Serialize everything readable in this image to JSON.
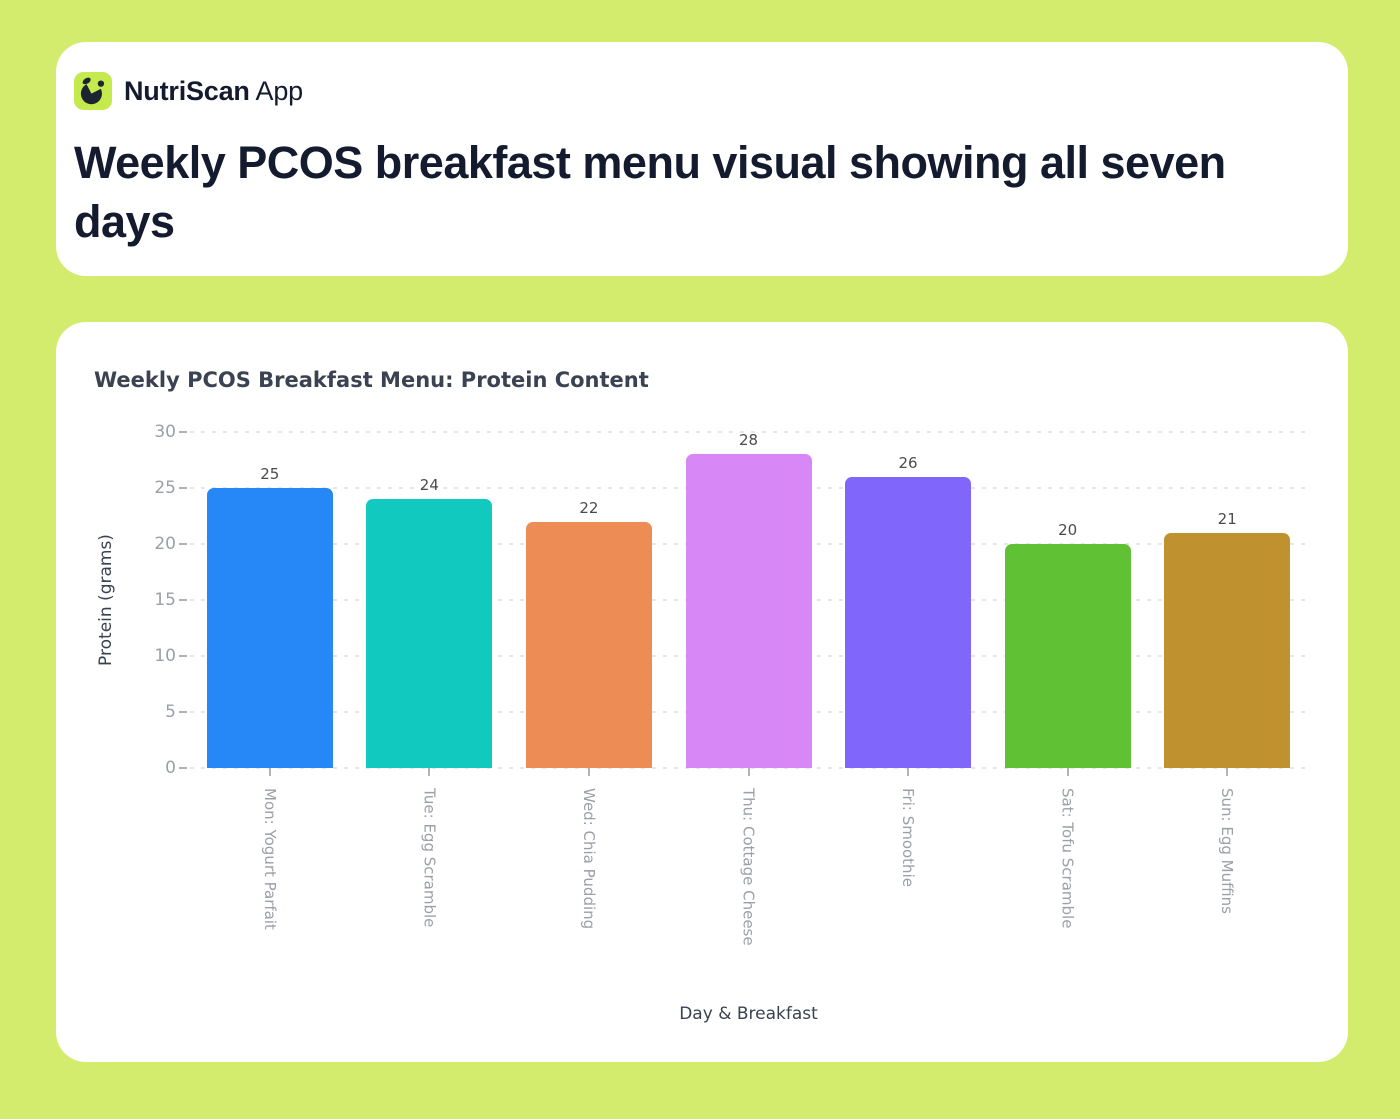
{
  "page": {
    "background_color": "#d3ec6e"
  },
  "header": {
    "logo": {
      "icon": "bowl-leaf-icon",
      "background_color": "#c4ea4e",
      "glyph_color": "#1b2430"
    },
    "brand_bold": "NutriScan",
    "brand_regular": "App",
    "title": "Weekly PCOS breakfast menu visual showing all seven days",
    "text_color": "#141b2e"
  },
  "chart_data": {
    "type": "bar",
    "title": "Weekly PCOS Breakfast Menu: Protein Content",
    "xlabel": "Day & Breakfast",
    "ylabel": "Protein (grams)",
    "categories": [
      "Mon: Yogurt Parfait",
      "Tue: Egg Scramble",
      "Wed: Chia Pudding",
      "Thu: Cottage Cheese",
      "Fri: Smoothie",
      "Sat: Tofu Scramble",
      "Sun: Egg Muffins"
    ],
    "values": [
      25,
      24,
      22,
      28,
      26,
      20,
      21
    ],
    "bar_colors": [
      "#2688f6",
      "#12c9bf",
      "#ed8c55",
      "#d887f7",
      "#8066fb",
      "#61c135",
      "#c0922f"
    ],
    "yticks": [
      0,
      5,
      10,
      15,
      20,
      25,
      30
    ],
    "ylim": [
      0,
      30
    ],
    "grid": "horizontal-dashed",
    "legend": "none",
    "value_labels": "above-bars",
    "tick_label_color": "#9aa0a6",
    "value_label_color": "#4b4b4b",
    "axis_label_color": "#3a4150",
    "title_color": "#3b4252",
    "grid_color": "#e7e7e7",
    "tick_mark_color": "#b3b3b3"
  }
}
